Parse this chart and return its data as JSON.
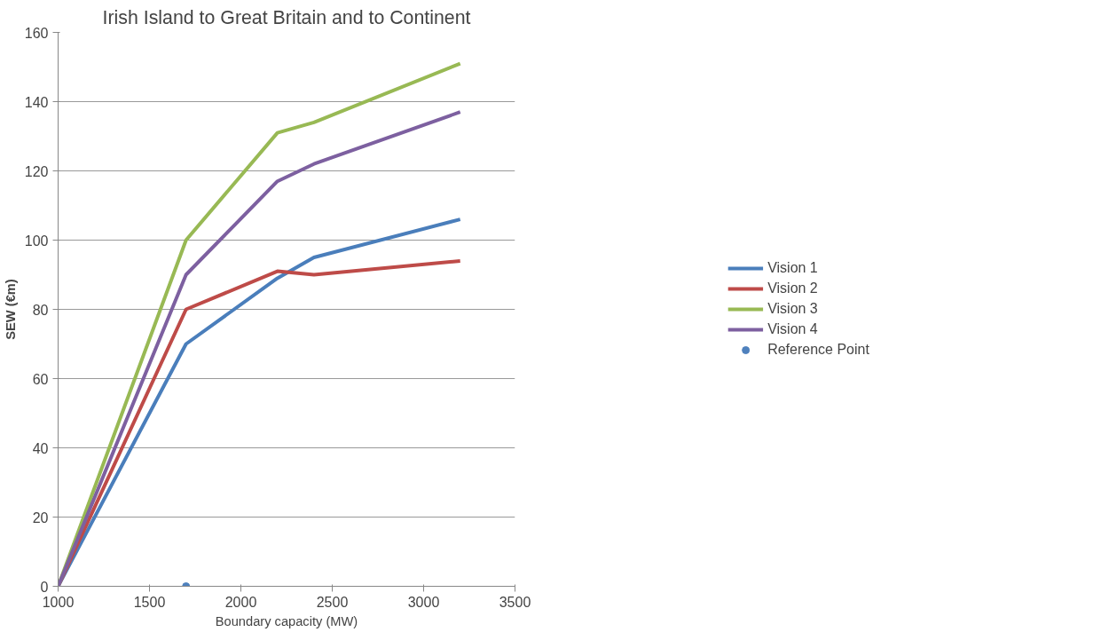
{
  "chart_data": {
    "type": "line",
    "title": "Irish Island to Great Britain and to Continent",
    "xlabel": "Boundary capacity (MW)",
    "ylabel": "SEW (€m)",
    "x": [
      1000,
      1700,
      2200,
      2400,
      3200
    ],
    "series": [
      {
        "name": "Vision 1",
        "color": "#4a7ebb",
        "values": [
          0,
          70,
          89,
          95,
          106
        ]
      },
      {
        "name": "Vision 2",
        "color": "#be4b48",
        "values": [
          0,
          80,
          91,
          90,
          94
        ]
      },
      {
        "name": "Vision 3",
        "color": "#98b954",
        "values": [
          0,
          100,
          131,
          134,
          151
        ]
      },
      {
        "name": "Vision 4",
        "color": "#7d60a0",
        "values": [
          0,
          90,
          117,
          122,
          137
        ]
      },
      {
        "name": "Reference Point",
        "type": "scatter",
        "marker": "circle",
        "color": "#4f81bd",
        "x": [
          1700
        ],
        "values": [
          0
        ]
      }
    ],
    "xlim": [
      1000,
      3500
    ],
    "xticks": [
      1000,
      1500,
      2000,
      2500,
      3000,
      3500
    ],
    "ylim": [
      0,
      160
    ],
    "yticks": [
      0,
      20,
      40,
      60,
      80,
      100,
      120,
      140,
      160
    ],
    "grid": "y",
    "legend": "right",
    "line_style": "solid"
  }
}
